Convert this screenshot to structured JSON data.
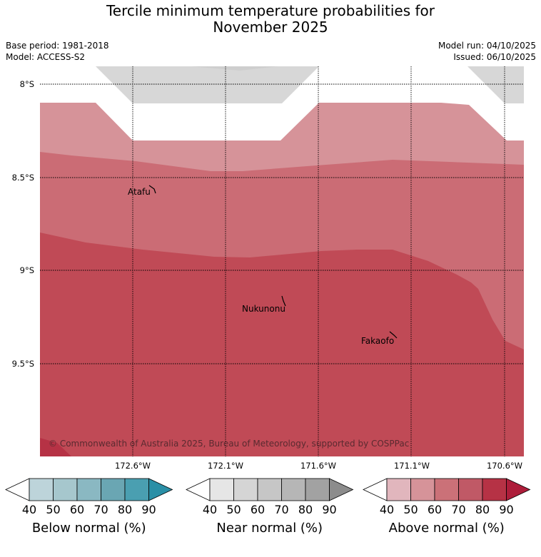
{
  "title_line1": "Tercile minimum temperature probabilities for",
  "title_line2": "November 2025",
  "base_period": "Base period: 1981-2018",
  "model": "Model: ACCESS-S2",
  "model_run": "Model run: 04/10/2025",
  "issued": "Issued: 06/10/2025",
  "lat_labels": [
    "8°S",
    "8.5°S",
    "9°S",
    "9.5°S"
  ],
  "lon_labels": [
    "172.6°W",
    "172.1°W",
    "171.6°W",
    "171.1°W",
    "170.6°W"
  ],
  "places": {
    "atafu": "Atafu",
    "nukunonu": "Nukunonu",
    "fakaofo": "Fakaofo"
  },
  "copyright": "© Commonwealth of Australia 2025, Bureau of Meteorology, supported by COSPPac",
  "legends": [
    {
      "title": "Below normal (%)",
      "ticks": [
        "40",
        "50",
        "60",
        "70",
        "80",
        "90"
      ],
      "colors": [
        "#ffffff",
        "#bdd4da",
        "#a6c7cd",
        "#8ab8c2",
        "#6aa6b3",
        "#4a9fb1",
        "#2a8fa6"
      ]
    },
    {
      "title": "Near normal (%)",
      "ticks": [
        "40",
        "50",
        "60",
        "70",
        "80",
        "90"
      ],
      "colors": [
        "#ffffff",
        "#e6e6e6",
        "#d5d5d5",
        "#c6c6c6",
        "#b6b6b6",
        "#a2a2a2",
        "#8c8c8c"
      ]
    },
    {
      "title": "Above normal (%)",
      "ticks": [
        "40",
        "50",
        "60",
        "70",
        "80",
        "90"
      ],
      "colors": [
        "#ffffff",
        "#e1b6bd",
        "#d69399",
        "#cb7178",
        "#c05966",
        "#b63245",
        "#ad1d3a"
      ]
    }
  ]
}
